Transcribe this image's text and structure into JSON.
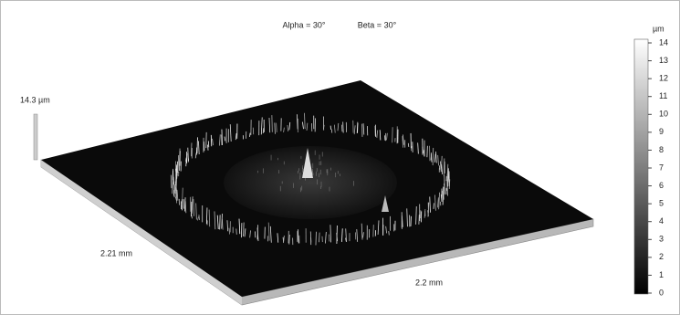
{
  "header": {
    "alpha": "Alpha = 30°",
    "beta": "Beta = 30°"
  },
  "plot": {
    "z_label": "14.3 µm",
    "x_label": "2.21 mm",
    "y_label": "2.2 mm"
  },
  "colorbar": {
    "unit": "µm",
    "ticks": [
      "14",
      "13",
      "12",
      "11",
      "10",
      "9",
      "8",
      "7",
      "6",
      "5",
      "4",
      "3",
      "2",
      "1",
      "0"
    ]
  }
}
